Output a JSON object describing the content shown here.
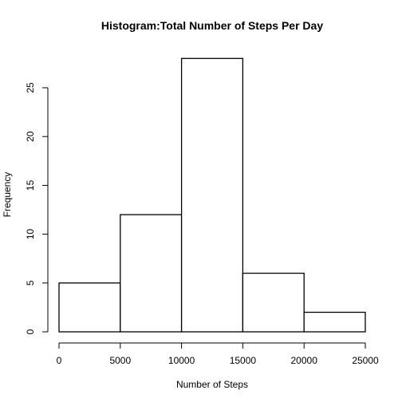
{
  "chart_data": {
    "type": "bar",
    "histogram": true,
    "title": "Histogram:Total Number of Steps Per Day",
    "xlabel": "Number of Steps",
    "ylabel": "Frequency",
    "bin_edges": [
      0,
      5000,
      10000,
      15000,
      20000,
      25000
    ],
    "values": [
      5,
      12,
      28,
      6,
      2
    ],
    "xlim": [
      0,
      25000
    ],
    "ylim": [
      0,
      28
    ],
    "x_ticks": [
      0,
      5000,
      10000,
      15000,
      20000,
      25000
    ],
    "y_ticks": [
      0,
      5,
      10,
      15,
      20,
      25
    ],
    "grid": false,
    "bar_fill": "#ffffff",
    "bar_stroke": "#000000"
  }
}
